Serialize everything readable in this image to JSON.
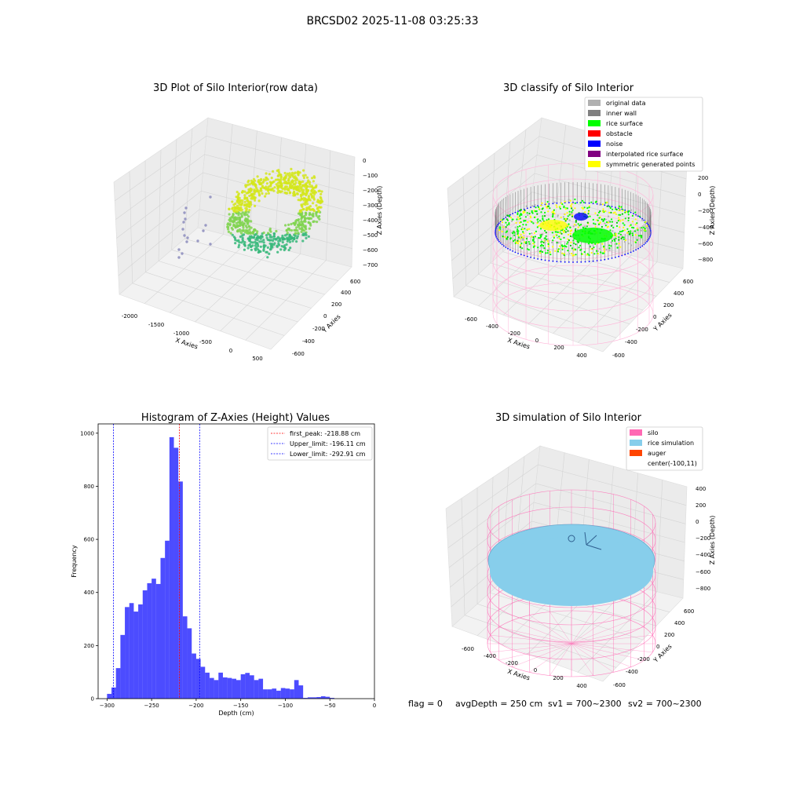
{
  "suptitle": "BRCSD02 2025-11-08 03:25:33",
  "panels": {
    "raw": {
      "title": "3D Plot of Silo Interior(row data)",
      "xlabel": "X Axies",
      "ylabel": "Y Axies",
      "zlabel": "Z Axies (Depth)",
      "xticks": [
        "-2000",
        "-1500",
        "-1000",
        "-500",
        "0",
        "500"
      ],
      "yticks": [
        "-600",
        "-400",
        "-200",
        "0",
        "200",
        "400",
        "600"
      ],
      "zticks": [
        "0",
        "−100",
        "−200",
        "−300",
        "−400",
        "−500",
        "−600",
        "−700"
      ]
    },
    "classify": {
      "title": "3D classify of Silo Interior",
      "xlabel": "X Axies",
      "ylabel": "Y Axies",
      "zlabel": "Z Axies (Depth)",
      "xticks": [
        "-600",
        "-400",
        "-200",
        "0",
        "200",
        "400"
      ],
      "yticks": [
        "-600",
        "-400",
        "-200",
        "0",
        "200",
        "400",
        "600"
      ],
      "zticks": [
        "200",
        "0",
        "−200",
        "−400",
        "−600",
        "−800"
      ],
      "legend": [
        {
          "label": "original data",
          "color": "#b0b0b0"
        },
        {
          "label": "inner wall",
          "color": "#808080"
        },
        {
          "label": "rice surface",
          "color": "#00ff00"
        },
        {
          "label": "obstacle",
          "color": "#ff0000"
        },
        {
          "label": "noise",
          "color": "#0000ff"
        },
        {
          "label": "interpolated rice surface",
          "color": "#800080"
        },
        {
          "label": "symmetric generated points",
          "color": "#ffff00"
        }
      ]
    },
    "simulation": {
      "title": "3D simulation of Silo Interior",
      "xlabel": "X Axies",
      "ylabel": "Y Axies",
      "zlabel": "Z Axies (Depth)",
      "xticks": [
        "-600",
        "-400",
        "-200",
        "0",
        "200",
        "400"
      ],
      "yticks": [
        "-600",
        "-400",
        "-200",
        "0",
        "200",
        "400",
        "600"
      ],
      "zticks": [
        "400",
        "200",
        "0",
        "−200",
        "−400",
        "−600",
        "−800"
      ],
      "legend": [
        {
          "label": "silo",
          "color": "#ff69b4"
        },
        {
          "label": "rice simulation",
          "color": "#87ceeb"
        },
        {
          "label": "auger",
          "color": "#ff4500"
        },
        {
          "label": "center(-100,11)",
          "color": ""
        }
      ]
    }
  },
  "chart_data": {
    "type": "bar",
    "title": "Histogram of Z-Axies (Height) Values",
    "xlabel": "Depth (cm)",
    "ylabel": "Frequency",
    "xlim": [
      -310,
      0
    ],
    "ylim": [
      0,
      1035
    ],
    "xticks": [
      "−300",
      "−250",
      "−200",
      "−150",
      "−100",
      "−50",
      "0"
    ],
    "yticks": [
      "0",
      "200",
      "400",
      "600",
      "800",
      "1000"
    ],
    "bar_color": "#0000ff",
    "bin_width": 5,
    "bin_starts": [
      -300,
      -295,
      -290,
      -285,
      -280,
      -275,
      -270,
      -265,
      -260,
      -255,
      -250,
      -245,
      -240,
      -235,
      -230,
      -225,
      -220,
      -215,
      -210,
      -205,
      -200,
      -195,
      -190,
      -185,
      -180,
      -175,
      -170,
      -165,
      -160,
      -155,
      -150,
      -145,
      -140,
      -135,
      -130,
      -125,
      -120,
      -115,
      -110,
      -105,
      -100,
      -95,
      -90,
      -85,
      -80,
      -75,
      -70,
      -65,
      -60,
      -55,
      -50,
      -45,
      -40,
      -35,
      -30,
      -25,
      -20,
      -15
    ],
    "values": [
      18,
      42,
      115,
      240,
      345,
      360,
      328,
      355,
      408,
      435,
      452,
      432,
      530,
      595,
      985,
      945,
      818,
      310,
      265,
      170,
      150,
      120,
      98,
      78,
      70,
      98,
      80,
      78,
      75,
      70,
      92,
      97,
      88,
      70,
      75,
      35,
      35,
      38,
      30,
      40,
      38,
      35,
      70,
      50,
      3,
      5,
      5,
      6,
      9,
      7,
      3,
      0,
      0,
      0,
      0,
      0,
      0,
      0
    ],
    "vlines": [
      {
        "label": "first_peak: -218.88 cm",
        "x": -218.88,
        "color": "#ff0000"
      },
      {
        "label": "Upper_limit: -196.11 cm",
        "x": -196.11,
        "color": "#0000ff"
      },
      {
        "label": "Lower_limit: -292.91 cm",
        "x": -292.91,
        "color": "#0000ff"
      }
    ],
    "legend_position": "top-right"
  },
  "status": {
    "flag": "flag = 0",
    "avg_depth": "avgDepth = 250 cm",
    "sv1": "sv1 = 700~2300",
    "sv2": "sv2 = 700~2300"
  }
}
